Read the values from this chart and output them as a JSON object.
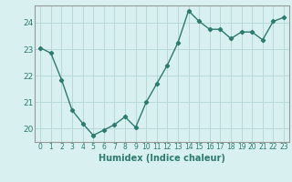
{
  "x": [
    0,
    1,
    2,
    3,
    4,
    5,
    6,
    7,
    8,
    9,
    10,
    11,
    12,
    13,
    14,
    15,
    16,
    17,
    18,
    19,
    20,
    21,
    22,
    23
  ],
  "y": [
    23.05,
    22.85,
    21.85,
    20.7,
    20.2,
    19.75,
    19.95,
    20.15,
    20.45,
    20.05,
    21.0,
    21.7,
    22.4,
    23.25,
    24.45,
    24.05,
    23.75,
    23.75,
    23.4,
    23.65,
    23.65,
    23.35,
    24.05,
    24.2
  ],
  "xlim": [
    -0.5,
    23.5
  ],
  "ylim": [
    19.5,
    24.65
  ],
  "yticks": [
    20,
    21,
    22,
    23,
    24
  ],
  "xtick_labels": [
    "0",
    "1",
    "2",
    "3",
    "4",
    "5",
    "6",
    "7",
    "8",
    "9",
    "10",
    "11",
    "12",
    "13",
    "14",
    "15",
    "16",
    "17",
    "18",
    "19",
    "20",
    "21",
    "22",
    "23"
  ],
  "xlabel": "Humidex (Indice chaleur)",
  "line_color": "#2d7a6e",
  "marker": "D",
  "marker_size": 2.2,
  "bg_color": "#d9f0f0",
  "grid_color": "#b8d8d8",
  "spine_color": "#999999",
  "tick_label_fontsize": 5.5,
  "ytick_label_fontsize": 6.5,
  "xlabel_fontsize": 7.0,
  "linewidth": 1.0
}
